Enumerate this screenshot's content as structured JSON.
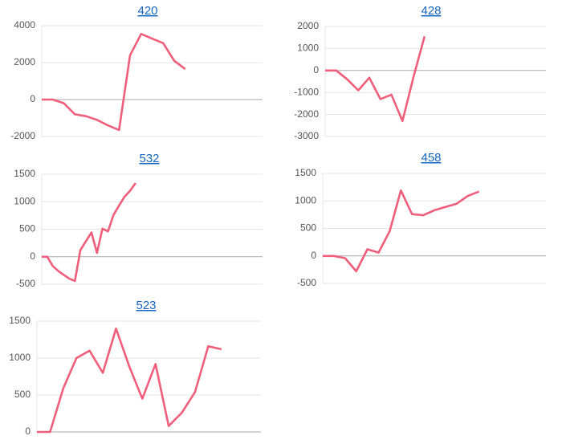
{
  "chart_data": [
    {
      "type": "line",
      "title": "420",
      "grid": true,
      "ylim": [
        -2000,
        4000
      ],
      "yticks": [
        -2000,
        0,
        2000,
        4000
      ],
      "categories": [
        null,
        null,
        null,
        null,
        null,
        null,
        null,
        null,
        null,
        null,
        null,
        null,
        null,
        null,
        null,
        null,
        null,
        null,
        null,
        null,
        null
      ],
      "series": [
        {
          "color": "#ef5f7b",
          "values": [
            0,
            0,
            -200,
            -800,
            -900,
            -1100,
            -1400,
            -1650,
            2400,
            3550,
            3300,
            3050,
            2100,
            1650,
            null,
            null,
            null,
            null,
            null,
            null,
            null
          ]
        }
      ]
    },
    {
      "type": "line",
      "title": "428",
      "grid": true,
      "ylim": [
        -3000,
        2000
      ],
      "yticks": [
        -3000,
        -2000,
        -1000,
        0,
        1000,
        2000
      ],
      "categories": [
        null,
        null,
        null,
        null,
        null,
        null,
        null,
        null,
        null,
        null,
        null,
        null,
        null,
        null,
        null,
        null,
        null,
        null,
        null,
        null,
        null
      ],
      "series": [
        {
          "color": "#ef5f7b",
          "values": [
            0,
            0,
            -400,
            -900,
            -330,
            -1300,
            -1100,
            -2300,
            -300,
            1550,
            null,
            null,
            null,
            null,
            null,
            null,
            null,
            null,
            null,
            null,
            null
          ]
        }
      ]
    },
    {
      "type": "line",
      "title": "532",
      "grid": true,
      "ylim": [
        -500,
        1500
      ],
      "yticks": [
        -500,
        0,
        500,
        1000,
        1500
      ],
      "categories": [
        null,
        null,
        null,
        null,
        null,
        null,
        null,
        null,
        null,
        null,
        null,
        null,
        null,
        null,
        null,
        null,
        null,
        null,
        null,
        null,
        null,
        null,
        null,
        null,
        null,
        null,
        null,
        null,
        null,
        null,
        null,
        null,
        null,
        null,
        null,
        null,
        null,
        null,
        null,
        null,
        null
      ],
      "series": [
        {
          "color": "#ef5f7b",
          "values": [
            0,
            0,
            -170,
            -260,
            -330,
            -400,
            -440,
            120,
            280,
            440,
            70,
            510,
            460,
            760,
            930,
            1090,
            1200,
            1340,
            null,
            null,
            null,
            null,
            null,
            null,
            null,
            null,
            null,
            null,
            null,
            null,
            null,
            null,
            null,
            null,
            null,
            null,
            null,
            null,
            null,
            null,
            null
          ]
        }
      ]
    },
    {
      "type": "line",
      "title": "458",
      "grid": true,
      "ylim": [
        -500,
        1500
      ],
      "yticks": [
        -500,
        0,
        500,
        1000,
        1500
      ],
      "categories": [
        null,
        null,
        null,
        null,
        null,
        null,
        null,
        null,
        null,
        null,
        null,
        null,
        null,
        null,
        null,
        null,
        null,
        null,
        null,
        null,
        null
      ],
      "series": [
        {
          "color": "#ef5f7b",
          "values": [
            0,
            0,
            -40,
            -280,
            120,
            60,
            450,
            1190,
            760,
            740,
            830,
            890,
            950,
            1090,
            1170,
            null,
            null,
            null,
            null,
            null,
            null
          ]
        }
      ]
    },
    {
      "type": "line",
      "title": "523",
      "grid": true,
      "ylim": [
        0,
        1500
      ],
      "yticks": [
        0,
        500,
        1000,
        1500
      ],
      "categories": [
        null,
        null,
        null,
        null,
        null,
        null,
        null,
        null,
        null,
        null,
        null,
        null,
        null,
        null,
        null,
        null,
        null,
        null
      ],
      "series": [
        {
          "color": "#ef5f7b",
          "values": [
            0,
            0,
            590,
            1000,
            1100,
            800,
            1400,
            890,
            450,
            920,
            80,
            260,
            540,
            1160,
            1120,
            null,
            null,
            null
          ]
        }
      ]
    }
  ]
}
